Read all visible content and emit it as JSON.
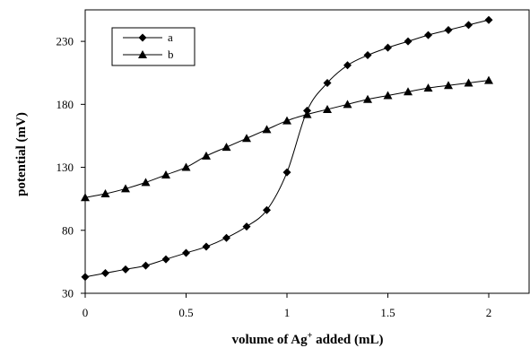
{
  "chart_data": {
    "type": "line",
    "xlabel": "volume of Ag",
    "xlabel_superscript": "+",
    "xlabel_suffix": " added (mL)",
    "ylabel": "potential (mV)",
    "xlim": [
      0,
      2.2
    ],
    "ylim": [
      30,
      255
    ],
    "x_ticks": [
      "0",
      "0.5",
      "1",
      "1.5",
      "2"
    ],
    "x_tick_values": [
      0,
      0.5,
      1,
      1.5,
      2
    ],
    "y_ticks": [
      "30",
      "80",
      "130",
      "180",
      "230"
    ],
    "y_tick_values": [
      30,
      80,
      130,
      180,
      230
    ],
    "grid": false,
    "legend_position": "top-left",
    "x": [
      0,
      0.1,
      0.2,
      0.3,
      0.4,
      0.5,
      0.6,
      0.7,
      0.8,
      0.9,
      1.0,
      1.1,
      1.2,
      1.3,
      1.4,
      1.5,
      1.6,
      1.7,
      1.8,
      1.9,
      2.0
    ],
    "series": [
      {
        "name": "a",
        "marker": "diamond",
        "color": "#000000",
        "values": [
          43,
          46,
          49,
          52,
          57,
          62,
          67,
          74,
          83,
          96,
          126,
          175,
          197,
          211,
          219,
          225,
          230,
          235,
          239,
          243,
          247
        ]
      },
      {
        "name": "b",
        "marker": "triangle",
        "color": "#000000",
        "values": [
          106,
          109,
          113,
          118,
          124,
          130,
          139,
          146,
          153,
          160,
          167,
          172,
          176,
          180,
          184,
          187,
          190,
          193,
          195,
          197,
          199
        ]
      }
    ]
  }
}
